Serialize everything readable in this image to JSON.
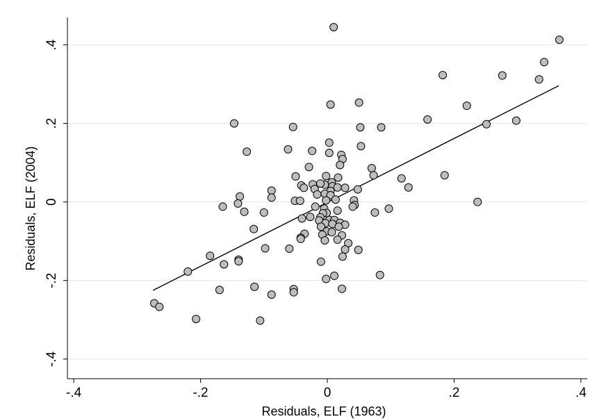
{
  "chart_data": {
    "type": "scatter",
    "xlabel": "Residuals, ELF (1963)",
    "ylabel": "Residuals, ELF (2004)",
    "xlim": [
      -0.41,
      0.41
    ],
    "ylim": [
      -0.45,
      0.47
    ],
    "xticks": [
      -0.4,
      -0.2,
      0,
      0.2,
      0.4
    ],
    "xtick_labels": [
      "-.4",
      "-.2",
      "0",
      ".2",
      ".4"
    ],
    "yticks": [
      -0.4,
      -0.2,
      0,
      0.2,
      0.4
    ],
    "ytick_labels": [
      "-.4",
      "-.2",
      "0",
      ".2",
      ".4"
    ],
    "grid": "horizontal",
    "colors": {
      "point_fill": "#bdbdbd",
      "point_edge": "#000000",
      "fit_line": "#000000",
      "grid": "#e6e6e6"
    },
    "fit_line": {
      "x": [
        -0.275,
        0.365
      ],
      "y": [
        -0.225,
        0.296
      ]
    },
    "points": [
      {
        "x": 0.01,
        "y": 0.445
      },
      {
        "x": 0.366,
        "y": 0.413
      },
      {
        "x": 0.342,
        "y": 0.356
      },
      {
        "x": 0.334,
        "y": 0.312
      },
      {
        "x": 0.182,
        "y": 0.323
      },
      {
        "x": 0.276,
        "y": 0.322
      },
      {
        "x": 0.298,
        "y": 0.207
      },
      {
        "x": 0.251,
        "y": 0.198
      },
      {
        "x": 0.22,
        "y": 0.245
      },
      {
        "x": 0.158,
        "y": 0.21
      },
      {
        "x": 0.185,
        "y": 0.068
      },
      {
        "x": 0.237,
        "y": 0.0
      },
      {
        "x": 0.05,
        "y": 0.253
      },
      {
        "x": 0.005,
        "y": 0.248
      },
      {
        "x": -0.147,
        "y": 0.2
      },
      {
        "x": -0.054,
        "y": 0.191
      },
      {
        "x": 0.052,
        "y": 0.19
      },
      {
        "x": 0.085,
        "y": 0.19
      },
      {
        "x": 0.003,
        "y": 0.151
      },
      {
        "x": 0.053,
        "y": 0.142
      },
      {
        "x": -0.062,
        "y": 0.134
      },
      {
        "x": -0.127,
        "y": 0.128
      },
      {
        "x": -0.024,
        "y": 0.13
      },
      {
        "x": 0.003,
        "y": 0.125
      },
      {
        "x": 0.022,
        "y": 0.12
      },
      {
        "x": 0.024,
        "y": 0.109
      },
      {
        "x": 0.02,
        "y": 0.094
      },
      {
        "x": -0.029,
        "y": 0.089
      },
      {
        "x": 0.07,
        "y": 0.086
      },
      {
        "x": 0.073,
        "y": 0.068
      },
      {
        "x": -0.002,
        "y": 0.066
      },
      {
        "x": 0.017,
        "y": 0.062
      },
      {
        "x": -0.05,
        "y": 0.065
      },
      {
        "x": 0.117,
        "y": 0.06
      },
      {
        "x": 0.007,
        "y": 0.05
      },
      {
        "x": 0.008,
        "y": 0.04
      },
      {
        "x": 0.005,
        "y": 0.028
      },
      {
        "x": -0.004,
        "y": 0.044
      },
      {
        "x": -0.011,
        "y": 0.047
      },
      {
        "x": -0.023,
        "y": 0.045
      },
      {
        "x": -0.041,
        "y": 0.042
      },
      {
        "x": -0.037,
        "y": 0.036
      },
      {
        "x": -0.02,
        "y": 0.033
      },
      {
        "x": 0.016,
        "y": 0.037
      },
      {
        "x": 0.028,
        "y": 0.036
      },
      {
        "x": 0.048,
        "y": 0.032
      },
      {
        "x": 0.128,
        "y": 0.037
      },
      {
        "x": -0.138,
        "y": 0.014
      },
      {
        "x": -0.088,
        "y": 0.029
      },
      {
        "x": -0.088,
        "y": 0.011
      },
      {
        "x": -0.004,
        "y": 0.021
      },
      {
        "x": 0.005,
        "y": 0.017
      },
      {
        "x": -0.016,
        "y": 0.019
      },
      {
        "x": 0.013,
        "y": 0.006
      },
      {
        "x": -0.051,
        "y": 0.003
      },
      {
        "x": -0.043,
        "y": 0.003
      },
      {
        "x": -0.002,
        "y": 0.004
      },
      {
        "x": 0.042,
        "y": 0.004
      },
      {
        "x": 0.043,
        "y": -0.008
      },
      {
        "x": -0.141,
        "y": -0.004
      },
      {
        "x": -0.165,
        "y": -0.012
      },
      {
        "x": -0.019,
        "y": -0.012
      },
      {
        "x": -0.005,
        "y": -0.017
      },
      {
        "x": 0.04,
        "y": -0.012
      },
      {
        "x": 0.097,
        "y": -0.017
      },
      {
        "x": -0.131,
        "y": -0.025
      },
      {
        "x": -0.1,
        "y": -0.027
      },
      {
        "x": -0.001,
        "y": -0.028
      },
      {
        "x": -0.007,
        "y": -0.029
      },
      {
        "x": 0.016,
        "y": -0.022
      },
      {
        "x": 0.075,
        "y": -0.027
      },
      {
        "x": -0.04,
        "y": -0.042
      },
      {
        "x": -0.027,
        "y": -0.038
      },
      {
        "x": -0.011,
        "y": -0.039
      },
      {
        "x": -0.013,
        "y": -0.047
      },
      {
        "x": 0.003,
        "y": -0.046
      },
      {
        "x": 0.011,
        "y": -0.046
      },
      {
        "x": -0.003,
        "y": -0.054
      },
      {
        "x": 0.008,
        "y": -0.056
      },
      {
        "x": 0.02,
        "y": -0.053
      },
      {
        "x": 0.028,
        "y": -0.058
      },
      {
        "x": -0.116,
        "y": -0.069
      },
      {
        "x": -0.01,
        "y": -0.063
      },
      {
        "x": 0.018,
        "y": -0.063
      },
      {
        "x": -0.001,
        "y": -0.075
      },
      {
        "x": 0.007,
        "y": -0.077
      },
      {
        "x": -0.036,
        "y": -0.081
      },
      {
        "x": -0.008,
        "y": -0.083
      },
      {
        "x": 0.023,
        "y": -0.085
      },
      {
        "x": -0.042,
        "y": -0.091
      },
      {
        "x": -0.042,
        "y": -0.094
      },
      {
        "x": -0.004,
        "y": -0.098
      },
      {
        "x": 0.016,
        "y": -0.096
      },
      {
        "x": 0.033,
        "y": -0.105
      },
      {
        "x": -0.098,
        "y": -0.118
      },
      {
        "x": -0.06,
        "y": -0.119
      },
      {
        "x": 0.028,
        "y": -0.121
      },
      {
        "x": 0.049,
        "y": -0.122
      },
      {
        "x": 0.024,
        "y": -0.139
      },
      {
        "x": -0.185,
        "y": -0.137
      },
      {
        "x": -0.14,
        "y": -0.147
      },
      {
        "x": -0.14,
        "y": -0.151
      },
      {
        "x": -0.163,
        "y": -0.159
      },
      {
        "x": -0.01,
        "y": -0.152
      },
      {
        "x": -0.22,
        "y": -0.177
      },
      {
        "x": 0.011,
        "y": -0.188
      },
      {
        "x": 0.083,
        "y": -0.186
      },
      {
        "x": -0.002,
        "y": -0.196
      },
      {
        "x": -0.17,
        "y": -0.224
      },
      {
        "x": -0.115,
        "y": -0.216
      },
      {
        "x": -0.053,
        "y": -0.222
      },
      {
        "x": -0.053,
        "y": -0.23
      },
      {
        "x": 0.023,
        "y": -0.221
      },
      {
        "x": -0.088,
        "y": -0.236
      },
      {
        "x": -0.273,
        "y": -0.258
      },
      {
        "x": -0.265,
        "y": -0.267
      },
      {
        "x": -0.207,
        "y": -0.298
      },
      {
        "x": -0.106,
        "y": -0.302
      }
    ]
  }
}
